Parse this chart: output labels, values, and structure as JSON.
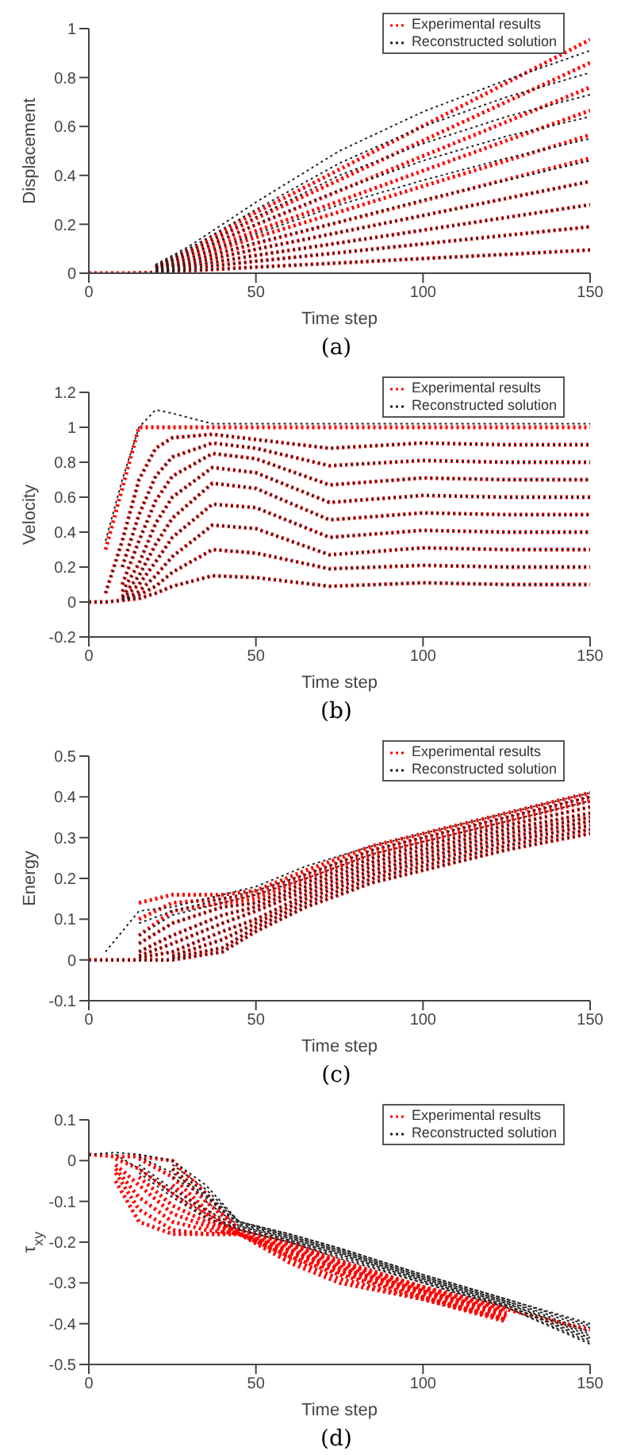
{
  "chart_data": [
    {
      "type": "line",
      "xlabel": "Time step",
      "ylabel": "Displacement",
      "annotations": [
        "(a)"
      ],
      "legend": "top right",
      "line_style": "dotted",
      "marker": "none",
      "grid": false,
      "x": [
        0,
        10,
        20,
        30,
        50,
        75,
        100,
        125,
        150
      ],
      "xlim": [
        0,
        150
      ],
      "xticks": [
        0,
        50,
        100,
        150
      ],
      "ylim": [
        0,
        1
      ],
      "yticks": [
        0,
        0.2,
        0.4,
        0.6,
        0.8,
        1
      ],
      "series": [
        {
          "name": "Experimental results",
          "color": "#ff0000",
          "values": [
            0,
            0,
            0.003,
            0.01,
            0.025,
            0.042,
            0.06,
            0.077,
            0.095
          ]
        },
        {
          "color": "#ff0000",
          "values": [
            null,
            null,
            0.006,
            0.019,
            0.049,
            0.084,
            0.12,
            0.155,
            0.19
          ]
        },
        {
          "color": "#ff0000",
          "values": [
            null,
            null,
            0.008,
            0.028,
            0.073,
            0.124,
            0.176,
            0.228,
            0.28
          ]
        },
        {
          "color": "#ff0000",
          "values": [
            null,
            null,
            0.011,
            0.038,
            0.098,
            0.167,
            0.236,
            0.306,
            0.375
          ]
        },
        {
          "color": "#ff0000",
          "values": [
            null,
            null,
            0.014,
            0.047,
            0.122,
            0.209,
            0.296,
            0.383,
            0.47
          ]
        },
        {
          "color": "#ff0000",
          "values": [
            null,
            null,
            0.017,
            0.057,
            0.147,
            0.251,
            0.356,
            0.46,
            0.565
          ]
        },
        {
          "color": "#ff0000",
          "values": [
            null,
            null,
            0.02,
            0.067,
            0.173,
            0.295,
            0.419,
            0.542,
            0.665
          ]
        },
        {
          "color": "#ff0000",
          "values": [
            null,
            null,
            0.023,
            0.076,
            0.198,
            0.337,
            0.479,
            0.619,
            0.76
          ]
        },
        {
          "color": "#ff0000",
          "values": [
            null,
            null,
            0.026,
            0.086,
            0.224,
            0.382,
            0.542,
            0.701,
            0.86
          ]
        },
        {
          "color": "#ff0000",
          "values": [
            null,
            null,
            0.029,
            0.096,
            0.248,
            0.424,
            0.602,
            0.778,
            0.955
          ]
        },
        {
          "name": "Reconstructed solution",
          "color": "#222222",
          "values": [
            0,
            0,
            0.003,
            0.01,
            0.025,
            0.042,
            0.06,
            0.077,
            0.095
          ]
        },
        {
          "color": "#222222",
          "values": [
            null,
            null,
            0.006,
            0.019,
            0.049,
            0.084,
            0.12,
            0.155,
            0.19
          ]
        },
        {
          "color": "#222222",
          "values": [
            null,
            null,
            0.008,
            0.028,
            0.073,
            0.124,
            0.176,
            0.228,
            0.28
          ]
        },
        {
          "color": "#222222",
          "values": [
            null,
            null,
            0.011,
            0.038,
            0.098,
            0.167,
            0.236,
            0.306,
            0.375
          ]
        },
        {
          "color": "#222222",
          "values": [
            null,
            null,
            0.014,
            0.048,
            0.125,
            0.21,
            0.3,
            0.38,
            0.46
          ]
        },
        {
          "color": "#222222",
          "values": [
            null,
            null,
            0.018,
            0.06,
            0.16,
            0.28,
            0.38,
            0.47,
            0.55
          ]
        },
        {
          "color": "#222222",
          "values": [
            null,
            null,
            0.022,
            0.075,
            0.2,
            0.34,
            0.46,
            0.56,
            0.64
          ]
        },
        {
          "color": "#222222",
          "values": [
            null,
            null,
            0.026,
            0.088,
            0.23,
            0.4,
            0.53,
            0.64,
            0.73
          ]
        },
        {
          "color": "#222222",
          "values": [
            null,
            null,
            0.03,
            0.1,
            0.26,
            0.45,
            0.6,
            0.72,
            0.82
          ]
        },
        {
          "color": "#222222",
          "values": [
            null,
            null,
            0.035,
            0.11,
            0.29,
            0.5,
            0.66,
            0.79,
            0.91
          ]
        }
      ]
    },
    {
      "type": "line",
      "xlabel": "Time step",
      "ylabel": "Velocity",
      "annotations": [
        "(b)"
      ],
      "legend": "top right",
      "line_style": "dotted",
      "marker": "none",
      "grid": false,
      "x": [
        0,
        5,
        10,
        15,
        20,
        25,
        37,
        50,
        72,
        100,
        125,
        150
      ],
      "xlim": [
        0,
        150
      ],
      "xticks": [
        0,
        50,
        100,
        150
      ],
      "ylim": [
        -0.2,
        1.2
      ],
      "yticks": [
        -0.2,
        0,
        0.2,
        0.4,
        0.6,
        0.8,
        1,
        1.2
      ],
      "series": [
        {
          "name": "Experimental results",
          "color": "#ff0000",
          "values": [
            0,
            0,
            0.01,
            0.02,
            0.05,
            0.09,
            0.15,
            0.14,
            0.09,
            0.11,
            0.1,
            0.1
          ]
        },
        {
          "color": "#ff0000",
          "values": [
            null,
            null,
            0.01,
            0.04,
            0.09,
            0.17,
            0.3,
            0.28,
            0.19,
            0.21,
            0.2,
            0.2
          ]
        },
        {
          "color": "#ff0000",
          "values": [
            null,
            null,
            0.01,
            0.06,
            0.15,
            0.26,
            0.44,
            0.42,
            0.27,
            0.31,
            0.3,
            0.3
          ]
        },
        {
          "color": "#ff0000",
          "values": [
            null,
            null,
            0.02,
            0.1,
            0.23,
            0.37,
            0.56,
            0.54,
            0.37,
            0.41,
            0.4,
            0.4
          ]
        },
        {
          "color": "#ff0000",
          "values": [
            null,
            null,
            0.03,
            0.15,
            0.33,
            0.48,
            0.68,
            0.65,
            0.47,
            0.51,
            0.5,
            0.5
          ]
        },
        {
          "color": "#ff0000",
          "values": [
            null,
            null,
            0.06,
            0.22,
            0.45,
            0.6,
            0.77,
            0.74,
            0.57,
            0.61,
            0.6,
            0.6
          ]
        },
        {
          "color": "#ff0000",
          "values": [
            null,
            null,
            0.1,
            0.35,
            0.58,
            0.72,
            0.85,
            0.82,
            0.67,
            0.71,
            0.7,
            0.7
          ]
        },
        {
          "color": "#ff0000",
          "values": [
            null,
            null,
            0.2,
            0.5,
            0.72,
            0.83,
            0.91,
            0.88,
            0.78,
            0.81,
            0.8,
            0.8
          ]
        },
        {
          "color": "#ff0000",
          "values": [
            null,
            0.05,
            0.35,
            0.7,
            0.88,
            0.94,
            0.96,
            0.93,
            0.88,
            0.91,
            0.9,
            0.9
          ]
        },
        {
          "color": "#ff0000",
          "values": [
            null,
            0.3,
            0.65,
            1,
            1,
            1,
            1,
            1,
            1,
            1,
            1,
            1
          ]
        },
        {
          "name": "Reconstructed solution",
          "color": "#222222",
          "values": [
            0,
            0,
            0.01,
            0.02,
            0.05,
            0.09,
            0.15,
            0.14,
            0.09,
            0.11,
            0.1,
            0.1
          ]
        },
        {
          "color": "#222222",
          "values": [
            null,
            null,
            0.01,
            0.04,
            0.09,
            0.17,
            0.3,
            0.28,
            0.19,
            0.21,
            0.2,
            0.2
          ]
        },
        {
          "color": "#222222",
          "values": [
            null,
            null,
            0.01,
            0.06,
            0.15,
            0.26,
            0.44,
            0.42,
            0.27,
            0.31,
            0.3,
            0.3
          ]
        },
        {
          "color": "#222222",
          "values": [
            null,
            null,
            0.02,
            0.1,
            0.23,
            0.37,
            0.56,
            0.54,
            0.37,
            0.41,
            0.4,
            0.4
          ]
        },
        {
          "color": "#222222",
          "values": [
            null,
            null,
            0.03,
            0.15,
            0.33,
            0.48,
            0.68,
            0.65,
            0.47,
            0.51,
            0.5,
            0.5
          ]
        },
        {
          "color": "#222222",
          "values": [
            null,
            null,
            0.06,
            0.22,
            0.45,
            0.6,
            0.77,
            0.74,
            0.57,
            0.61,
            0.6,
            0.6
          ]
        },
        {
          "color": "#222222",
          "values": [
            null,
            null,
            0.1,
            0.35,
            0.58,
            0.72,
            0.85,
            0.82,
            0.67,
            0.71,
            0.7,
            0.7
          ]
        },
        {
          "color": "#222222",
          "values": [
            null,
            null,
            0.2,
            0.5,
            0.72,
            0.83,
            0.91,
            0.88,
            0.78,
            0.81,
            0.8,
            0.8
          ]
        },
        {
          "color": "#222222",
          "values": [
            null,
            0.05,
            0.35,
            0.7,
            0.88,
            0.94,
            0.96,
            0.93,
            0.88,
            0.91,
            0.9,
            0.9
          ]
        },
        {
          "color": "#222222",
          "values": [
            null,
            0.35,
            0.7,
            1,
            1.1,
            1.08,
            1.02,
            1.02,
            1.02,
            1.02,
            1.02,
            1.02
          ]
        }
      ]
    },
    {
      "type": "line",
      "xlabel": "Time step",
      "ylabel": "Energy",
      "annotations": [
        "(c)"
      ],
      "legend": "top right",
      "line_style": "dotted",
      "marker": "none",
      "grid": false,
      "x": [
        0,
        5,
        15,
        25,
        40,
        50,
        65,
        85,
        100,
        125,
        150
      ],
      "xlim": [
        0,
        150
      ],
      "xticks": [
        0,
        50,
        100,
        150
      ],
      "ylim": [
        -0.1,
        0.5
      ],
      "yticks": [
        -0.1,
        0,
        0.1,
        0.2,
        0.3,
        0.4,
        0.5
      ],
      "series": [
        {
          "name": "Experimental results",
          "color": "#ff0000",
          "values": [
            0,
            0,
            0,
            0,
            0.02,
            0.07,
            0.13,
            0.19,
            0.22,
            0.27,
            0.31
          ]
        },
        {
          "color": "#ff0000",
          "values": [
            null,
            null,
            null,
            0.005,
            0.03,
            0.08,
            0.14,
            0.2,
            0.23,
            0.28,
            0.32
          ]
        },
        {
          "color": "#ff0000",
          "values": [
            null,
            null,
            null,
            0.01,
            0.05,
            0.09,
            0.15,
            0.21,
            0.24,
            0.29,
            0.33
          ]
        },
        {
          "color": "#ff0000",
          "values": [
            null,
            null,
            0.005,
            0.02,
            0.07,
            0.1,
            0.16,
            0.22,
            0.25,
            0.3,
            0.34
          ]
        },
        {
          "color": "#ff0000",
          "values": [
            null,
            null,
            0.01,
            0.04,
            0.09,
            0.12,
            0.17,
            0.23,
            0.26,
            0.31,
            0.35
          ]
        },
        {
          "color": "#ff0000",
          "values": [
            null,
            null,
            0.02,
            0.06,
            0.11,
            0.13,
            0.18,
            0.24,
            0.27,
            0.32,
            0.36
          ]
        },
        {
          "color": "#ff0000",
          "values": [
            null,
            null,
            0.04,
            0.09,
            0.13,
            0.14,
            0.19,
            0.25,
            0.28,
            0.33,
            0.375
          ]
        },
        {
          "color": "#ff0000",
          "values": [
            null,
            null,
            0.06,
            0.12,
            0.14,
            0.15,
            0.2,
            0.26,
            0.29,
            0.34,
            0.39
          ]
        },
        {
          "color": "#ff0000",
          "values": [
            null,
            null,
            0.1,
            0.14,
            0.15,
            0.16,
            0.21,
            0.27,
            0.3,
            0.35,
            0.4
          ]
        },
        {
          "color": "#ff0000",
          "values": [
            null,
            null,
            0.14,
            0.16,
            0.16,
            0.17,
            0.22,
            0.28,
            0.31,
            0.36,
            0.41
          ]
        },
        {
          "name": "Reconstructed solution",
          "color": "#222222",
          "values": [
            0,
            0,
            0,
            0,
            0.02,
            0.07,
            0.13,
            0.19,
            0.22,
            0.27,
            0.31
          ]
        },
        {
          "color": "#222222",
          "values": [
            null,
            null,
            null,
            0.005,
            0.03,
            0.08,
            0.14,
            0.2,
            0.23,
            0.28,
            0.32
          ]
        },
        {
          "color": "#222222",
          "values": [
            null,
            null,
            null,
            0.01,
            0.05,
            0.09,
            0.15,
            0.21,
            0.24,
            0.29,
            0.33
          ]
        },
        {
          "color": "#222222",
          "values": [
            null,
            null,
            0.005,
            0.02,
            0.07,
            0.1,
            0.16,
            0.22,
            0.25,
            0.3,
            0.34
          ]
        },
        {
          "color": "#222222",
          "values": [
            null,
            null,
            0.01,
            0.04,
            0.09,
            0.12,
            0.17,
            0.23,
            0.26,
            0.31,
            0.35
          ]
        },
        {
          "color": "#222222",
          "values": [
            null,
            null,
            0.02,
            0.06,
            0.11,
            0.13,
            0.18,
            0.24,
            0.27,
            0.32,
            0.36
          ]
        },
        {
          "color": "#222222",
          "values": [
            null,
            null,
            0.04,
            0.09,
            0.13,
            0.14,
            0.19,
            0.25,
            0.28,
            0.33,
            0.375
          ]
        },
        {
          "color": "#222222",
          "values": [
            null,
            null,
            0.06,
            0.11,
            0.14,
            0.16,
            0.2,
            0.26,
            0.29,
            0.34,
            0.39
          ]
        },
        {
          "color": "#222222",
          "values": [
            null,
            null,
            0.09,
            0.12,
            0.15,
            0.17,
            0.21,
            0.27,
            0.3,
            0.35,
            0.4
          ]
        },
        {
          "color": "#222222",
          "values": [
            null,
            0.02,
            0.12,
            0.13,
            0.16,
            0.18,
            0.23,
            0.28,
            0.31,
            0.36,
            0.41
          ]
        }
      ]
    },
    {
      "type": "line",
      "xlabel": "Time step",
      "ylabel": "τ$_{xy}$",
      "annotations": [
        "(d)"
      ],
      "legend": "top right",
      "line_style": "dotted",
      "marker": "none",
      "grid": false,
      "x": [
        0,
        8,
        15,
        25,
        35,
        45,
        60,
        75,
        100,
        125,
        150
      ],
      "xlim": [
        0,
        150
      ],
      "xticks": [
        0,
        50,
        100,
        150
      ],
      "ylim": [
        -0.5,
        0.1
      ],
      "yticks": [
        -0.5,
        -0.4,
        -0.3,
        -0.2,
        -0.1,
        0,
        0.1
      ],
      "series": [
        {
          "name": "Experimental results",
          "color": "#ff0000",
          "values": [
            0.015,
            0.01,
            0.01,
            0,
            -0.08,
            -0.17,
            -0.2,
            -0.245,
            -0.31,
            -0.365,
            -0.415
          ]
        },
        {
          "color": "#ff0000",
          "values": [
            null,
            null,
            null,
            -0.02,
            -0.1,
            -0.17,
            -0.205,
            -0.25,
            -0.31,
            -0.36,
            null
          ]
        },
        {
          "color": "#ff0000",
          "values": [
            null,
            null,
            0.005,
            -0.04,
            -0.12,
            -0.18,
            -0.21,
            -0.255,
            -0.315,
            -0.365,
            null
          ]
        },
        {
          "color": "#ff0000",
          "values": [
            null,
            null,
            null,
            -0.06,
            -0.13,
            -0.18,
            -0.215,
            -0.26,
            -0.32,
            -0.37,
            null
          ]
        },
        {
          "color": "#ff0000",
          "values": [
            null,
            0.005,
            -0.02,
            -0.08,
            -0.14,
            -0.18,
            -0.22,
            -0.265,
            -0.32,
            -0.375,
            null
          ]
        },
        {
          "color": "#ff0000",
          "values": [
            null,
            null,
            -0.04,
            -0.11,
            -0.15,
            -0.18,
            -0.225,
            -0.27,
            -0.325,
            -0.38,
            null
          ]
        },
        {
          "color": "#ff0000",
          "values": [
            null,
            -0.01,
            -0.06,
            -0.13,
            -0.16,
            -0.18,
            -0.23,
            -0.275,
            -0.33,
            -0.385,
            null
          ]
        },
        {
          "color": "#ff0000",
          "values": [
            null,
            -0.02,
            -0.09,
            -0.15,
            -0.17,
            -0.18,
            -0.235,
            -0.28,
            -0.335,
            -0.39,
            null
          ]
        },
        {
          "color": "#ff0000",
          "values": [
            null,
            -0.03,
            -0.12,
            -0.17,
            -0.18,
            -0.18,
            -0.24,
            -0.29,
            -0.34,
            -0.39,
            null
          ]
        },
        {
          "color": "#ff0000",
          "values": [
            null,
            -0.05,
            -0.15,
            -0.18,
            -0.18,
            -0.18,
            -0.25,
            -0.3,
            -0.34,
            -0.395,
            null
          ]
        },
        {
          "name": "Reconstructed solution",
          "color": "#222222",
          "values": [
            0.015,
            0.02,
            0.015,
            0,
            -0.06,
            -0.15,
            -0.18,
            -0.215,
            -0.28,
            -0.34,
            -0.4
          ]
        },
        {
          "color": "#222222",
          "values": [
            null,
            null,
            null,
            -0.01,
            -0.07,
            -0.15,
            -0.18,
            -0.215,
            -0.28,
            -0.34,
            -0.405
          ]
        },
        {
          "color": "#222222",
          "values": [
            null,
            null,
            null,
            -0.02,
            -0.08,
            -0.15,
            -0.185,
            -0.22,
            -0.285,
            -0.345,
            -0.41
          ]
        },
        {
          "color": "#222222",
          "values": [
            null,
            null,
            0.01,
            -0.03,
            -0.085,
            -0.155,
            -0.185,
            -0.22,
            -0.285,
            -0.345,
            -0.42
          ]
        },
        {
          "color": "#222222",
          "values": [
            null,
            null,
            null,
            -0.04,
            -0.09,
            -0.155,
            -0.19,
            -0.225,
            -0.29,
            -0.35,
            -0.425
          ]
        },
        {
          "color": "#222222",
          "values": [
            null,
            null,
            null,
            null,
            -0.1,
            -0.16,
            -0.19,
            -0.225,
            -0.29,
            -0.35,
            -0.43
          ]
        },
        {
          "color": "#222222",
          "values": [
            null,
            null,
            null,
            null,
            null,
            -0.16,
            -0.195,
            -0.23,
            -0.295,
            -0.355,
            -0.435
          ]
        },
        {
          "color": "#222222",
          "values": [
            null,
            null,
            -0.01,
            -0.07,
            -0.12,
            -0.165,
            -0.195,
            -0.23,
            -0.295,
            -0.355,
            -0.44
          ]
        },
        {
          "color": "#222222",
          "values": [
            null,
            0.015,
            -0.02,
            -0.08,
            -0.13,
            -0.17,
            -0.2,
            -0.235,
            -0.3,
            -0.36,
            -0.445
          ]
        },
        {
          "color": "#222222",
          "values": [
            null,
            null,
            -0.03,
            -0.09,
            -0.14,
            -0.17,
            -0.2,
            -0.24,
            -0.3,
            -0.36,
            -0.45
          ]
        }
      ]
    }
  ]
}
